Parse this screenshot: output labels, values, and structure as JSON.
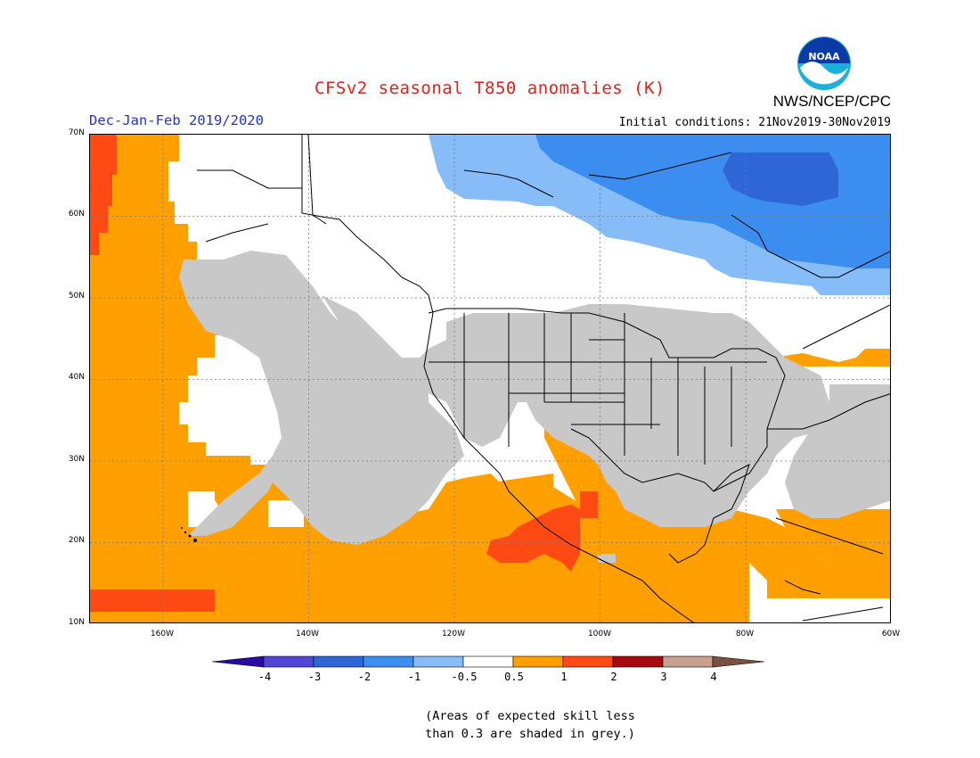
{
  "title": "CFSv2 seasonal T850 anomalies (K)",
  "organization": "NWS/NCEP/CPC",
  "logo_text": "NOAA",
  "season": "Dec-Jan-Feb 2019/2020",
  "initial_conditions": "Initial conditions: 21Nov2019-30Nov2019",
  "map": {
    "lat_labels": [
      "70N",
      "60N",
      "50N",
      "40N",
      "30N",
      "20N",
      "10N"
    ],
    "lon_labels": [
      "160W",
      "140W",
      "120W",
      "100W",
      "80W",
      "60W"
    ],
    "gridline_color": "#7a7a7a"
  },
  "colorbar": {
    "labels": [
      "-4",
      "-3",
      "-2",
      "-1",
      "-0.5",
      "0.5",
      "1",
      "2",
      "3",
      "4"
    ],
    "colors": [
      "#2a0aa6",
      "#5146d6",
      "#2e66d8",
      "#3b8ef0",
      "#86bdf8",
      "#ffffff",
      "#ffa000",
      "#ff4a14",
      "#a60a10",
      "#c8a090",
      "#7a5040"
    ]
  },
  "legend_colors": {
    "grey_low_skill": "#c8c8c8",
    "warm_light": "#ffa000",
    "warm_mid": "#ff4a14",
    "cool_light": "#86bdf8",
    "cool_mid": "#3b8ef0",
    "cool_dark": "#2e66d8"
  },
  "footnote": {
    "line1": "(Areas of expected skill less",
    "line2": "than 0.3 are shaded in grey.)"
  }
}
